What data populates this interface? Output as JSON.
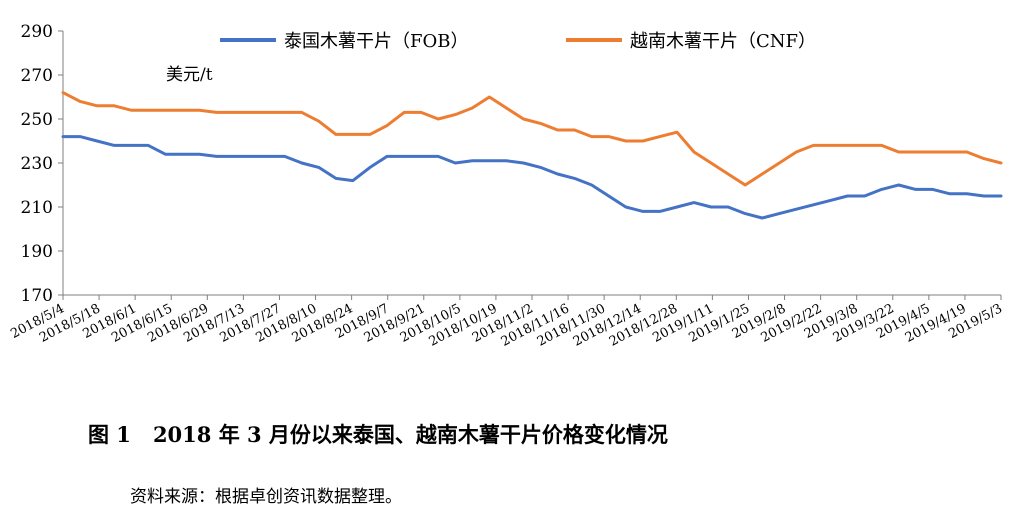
{
  "chart_data": {
    "type": "line",
    "title": "",
    "ylabel": "美元/t",
    "xlabel": "",
    "ylim": [
      170,
      290
    ],
    "yticks": [
      170,
      190,
      210,
      230,
      250,
      270,
      290
    ],
    "grid": false,
    "legend_position": "top",
    "x_tick_labels": [
      "2018/5/4",
      "2018/5/18",
      "2018/6/1",
      "2018/6/15",
      "2018/6/29",
      "2018/7/13",
      "2018/7/27",
      "2018/8/10",
      "2018/8/24",
      "2018/9/7",
      "2018/9/21",
      "2018/10/5",
      "2018/10/19",
      "2018/11/2",
      "2018/11/16",
      "2018/11/30",
      "2018/12/14",
      "2018/12/28",
      "2019/1/11",
      "2019/1/25",
      "2019/2/8",
      "2019/2/22",
      "2019/3/8",
      "2019/3/22",
      "2019/4/5",
      "2019/4/19",
      "2019/5/3"
    ],
    "series": [
      {
        "name": "泰国木薯干片（FOB）",
        "color": "#4472C4",
        "values": [
          242,
          242,
          240,
          238,
          238,
          238,
          234,
          234,
          234,
          233,
          233,
          233,
          233,
          233,
          230,
          228,
          223,
          222,
          228,
          233,
          233,
          233,
          233,
          230,
          231,
          231,
          231,
          230,
          228,
          225,
          223,
          220,
          215,
          210,
          208,
          208,
          210,
          212,
          210,
          210,
          207,
          205,
          207,
          209,
          211,
          213,
          215,
          215,
          218,
          220,
          218,
          218,
          216,
          216,
          215,
          215
        ]
      },
      {
        "name": "越南木薯干片（CNF）",
        "color": "#ED7D31",
        "values": [
          262,
          258,
          256,
          256,
          254,
          254,
          254,
          254,
          254,
          253,
          253,
          253,
          253,
          253,
          253,
          249,
          243,
          243,
          243,
          247,
          253,
          253,
          250,
          252,
          255,
          260,
          255,
          250,
          248,
          245,
          245,
          242,
          242,
          240,
          240,
          242,
          244,
          235,
          230,
          225,
          220,
          225,
          230,
          235,
          238,
          238,
          238,
          238,
          238,
          235,
          235,
          235,
          235,
          235,
          232,
          230
        ]
      }
    ]
  },
  "caption": {
    "number": "图 1",
    "text": "2018 年 3 月份以来泰国、越南木薯干片价格变化情况"
  },
  "source_note": "资料来源：根据卓创资讯数据整理。"
}
